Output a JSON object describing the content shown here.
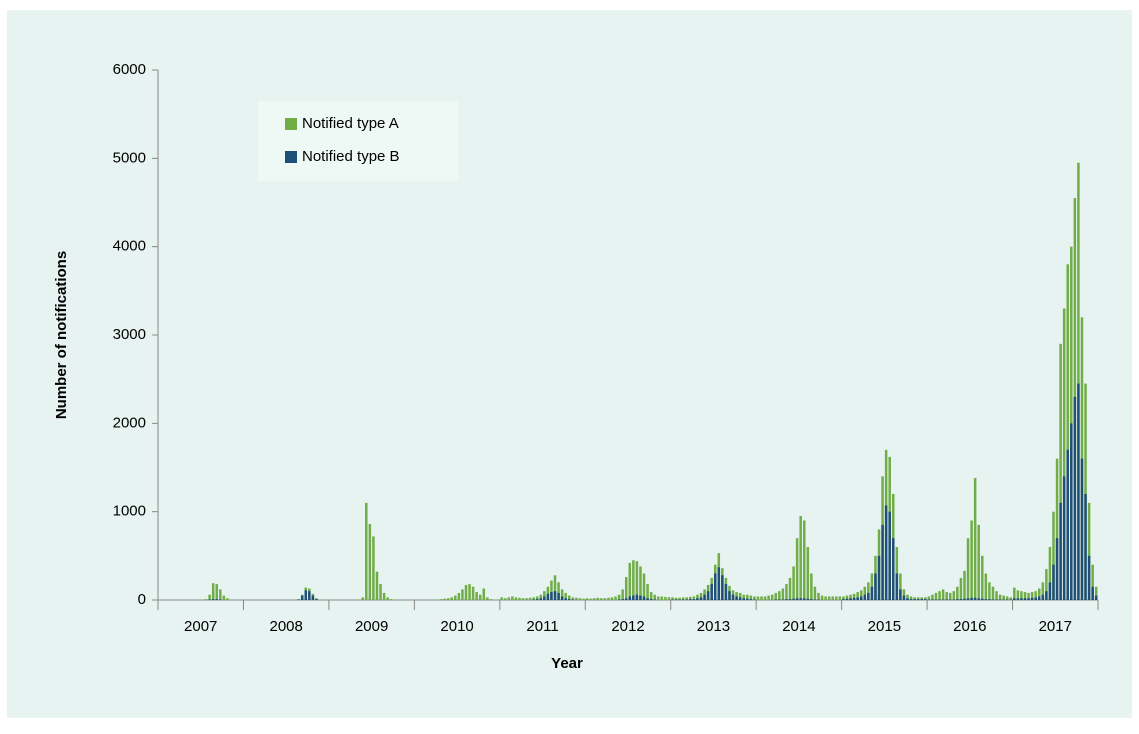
{
  "chart_data": {
    "type": "bar",
    "overlay": true,
    "x_label": "Year",
    "y_label": "Number of notifications",
    "categories": [
      "2007",
      "2008",
      "2009",
      "2010",
      "2011",
      "2012",
      "2013",
      "2014",
      "2015",
      "2016",
      "2017"
    ],
    "ylim": [
      0,
      6000
    ],
    "yticks": [
      0,
      1000,
      2000,
      3000,
      4000,
      5000,
      6000
    ],
    "legend": "upper left",
    "grid": false,
    "series": [
      {
        "name": "Notified type A",
        "color": "#70ad47",
        "values": [
          [
            0,
            0,
            0,
            0,
            0,
            0,
            0,
            0,
            0,
            0,
            0,
            0,
            0,
            10,
            60,
            190,
            180,
            120,
            50,
            20,
            5,
            0,
            0,
            0
          ],
          [
            0,
            0,
            0,
            0,
            0,
            0,
            0,
            0,
            0,
            0,
            0,
            0,
            0,
            0,
            0,
            10,
            60,
            140,
            130,
            70,
            20,
            5,
            0,
            0
          ],
          [
            0,
            0,
            0,
            0,
            0,
            0,
            0,
            0,
            5,
            30,
            1100,
            860,
            720,
            320,
            180,
            80,
            30,
            10,
            5,
            0,
            0,
            0,
            0,
            0
          ],
          [
            0,
            0,
            0,
            0,
            0,
            0,
            5,
            10,
            15,
            20,
            30,
            50,
            80,
            120,
            170,
            180,
            150,
            90,
            60,
            130,
            30,
            10,
            5,
            0
          ],
          [
            30,
            20,
            30,
            40,
            30,
            25,
            20,
            20,
            25,
            30,
            40,
            60,
            100,
            150,
            220,
            280,
            200,
            120,
            80,
            50,
            30,
            25,
            20,
            15
          ],
          [
            20,
            15,
            20,
            25,
            20,
            20,
            25,
            30,
            40,
            60,
            120,
            260,
            420,
            450,
            440,
            380,
            300,
            180,
            90,
            60,
            40,
            40,
            35,
            30
          ],
          [
            30,
            25,
            25,
            30,
            30,
            35,
            40,
            60,
            80,
            120,
            170,
            250,
            400,
            530,
            360,
            250,
            160,
            110,
            90,
            80,
            60,
            60,
            50,
            40
          ],
          [
            40,
            40,
            40,
            50,
            60,
            80,
            100,
            130,
            180,
            250,
            380,
            700,
            950,
            900,
            600,
            300,
            150,
            80,
            50,
            40,
            40,
            40,
            40,
            40
          ],
          [
            40,
            50,
            60,
            70,
            90,
            110,
            150,
            200,
            300,
            500,
            800,
            1400,
            1700,
            1620,
            1200,
            600,
            300,
            120,
            60,
            40,
            30,
            30,
            30,
            30
          ],
          [
            40,
            60,
            80,
            100,
            120,
            90,
            80,
            100,
            150,
            250,
            330,
            700,
            900,
            1380,
            850,
            500,
            300,
            200,
            150,
            100,
            60,
            50,
            40,
            30
          ],
          [
            140,
            110,
            100,
            90,
            80,
            90,
            100,
            130,
            200,
            350,
            600,
            1000,
            1600,
            2900,
            3300,
            3800,
            4000,
            4550,
            4950,
            3200,
            2450,
            1100,
            400,
            150
          ]
        ]
      },
      {
        "name": "Notified type B",
        "color": "#1f4e79",
        "values": [
          [
            0,
            0,
            0,
            0,
            0,
            0,
            0,
            0,
            0,
            0,
            0,
            0,
            0,
            0,
            5,
            10,
            10,
            5,
            0,
            0,
            0,
            0,
            0,
            0
          ],
          [
            0,
            0,
            0,
            0,
            0,
            0,
            0,
            0,
            0,
            0,
            0,
            0,
            0,
            0,
            0,
            5,
            50,
            110,
            100,
            50,
            10,
            0,
            0,
            0
          ],
          [
            0,
            0,
            0,
            0,
            0,
            0,
            0,
            0,
            0,
            0,
            0,
            0,
            0,
            0,
            0,
            0,
            0,
            0,
            0,
            0,
            0,
            0,
            0,
            0
          ],
          [
            0,
            0,
            0,
            0,
            0,
            0,
            0,
            0,
            0,
            0,
            0,
            0,
            0,
            0,
            0,
            0,
            0,
            0,
            0,
            0,
            0,
            0,
            0,
            0
          ],
          [
            0,
            0,
            0,
            0,
            0,
            0,
            0,
            0,
            0,
            5,
            10,
            20,
            40,
            70,
            90,
            100,
            80,
            40,
            20,
            10,
            5,
            0,
            0,
            0
          ],
          [
            0,
            0,
            0,
            0,
            0,
            0,
            0,
            0,
            0,
            5,
            10,
            20,
            40,
            50,
            60,
            50,
            40,
            20,
            10,
            5,
            0,
            0,
            0,
            0
          ],
          [
            5,
            5,
            5,
            5,
            5,
            10,
            10,
            20,
            30,
            60,
            100,
            180,
            300,
            370,
            280,
            180,
            100,
            60,
            40,
            30,
            20,
            15,
            10,
            5
          ],
          [
            0,
            0,
            0,
            0,
            0,
            5,
            5,
            5,
            10,
            10,
            15,
            20,
            20,
            20,
            15,
            10,
            5,
            5,
            0,
            0,
            0,
            0,
            0,
            0
          ],
          [
            10,
            15,
            20,
            25,
            30,
            40,
            60,
            80,
            150,
            300,
            500,
            850,
            1070,
            1000,
            700,
            300,
            120,
            50,
            20,
            10,
            10,
            10,
            10,
            10
          ],
          [
            5,
            5,
            5,
            5,
            5,
            5,
            5,
            5,
            10,
            10,
            15,
            20,
            25,
            25,
            20,
            15,
            10,
            10,
            5,
            5,
            5,
            5,
            5,
            5
          ],
          [
            20,
            20,
            20,
            20,
            20,
            25,
            30,
            40,
            60,
            100,
            200,
            400,
            700,
            1100,
            1400,
            1700,
            2000,
            2300,
            2450,
            1600,
            1200,
            500,
            150,
            50
          ]
        ]
      }
    ]
  }
}
